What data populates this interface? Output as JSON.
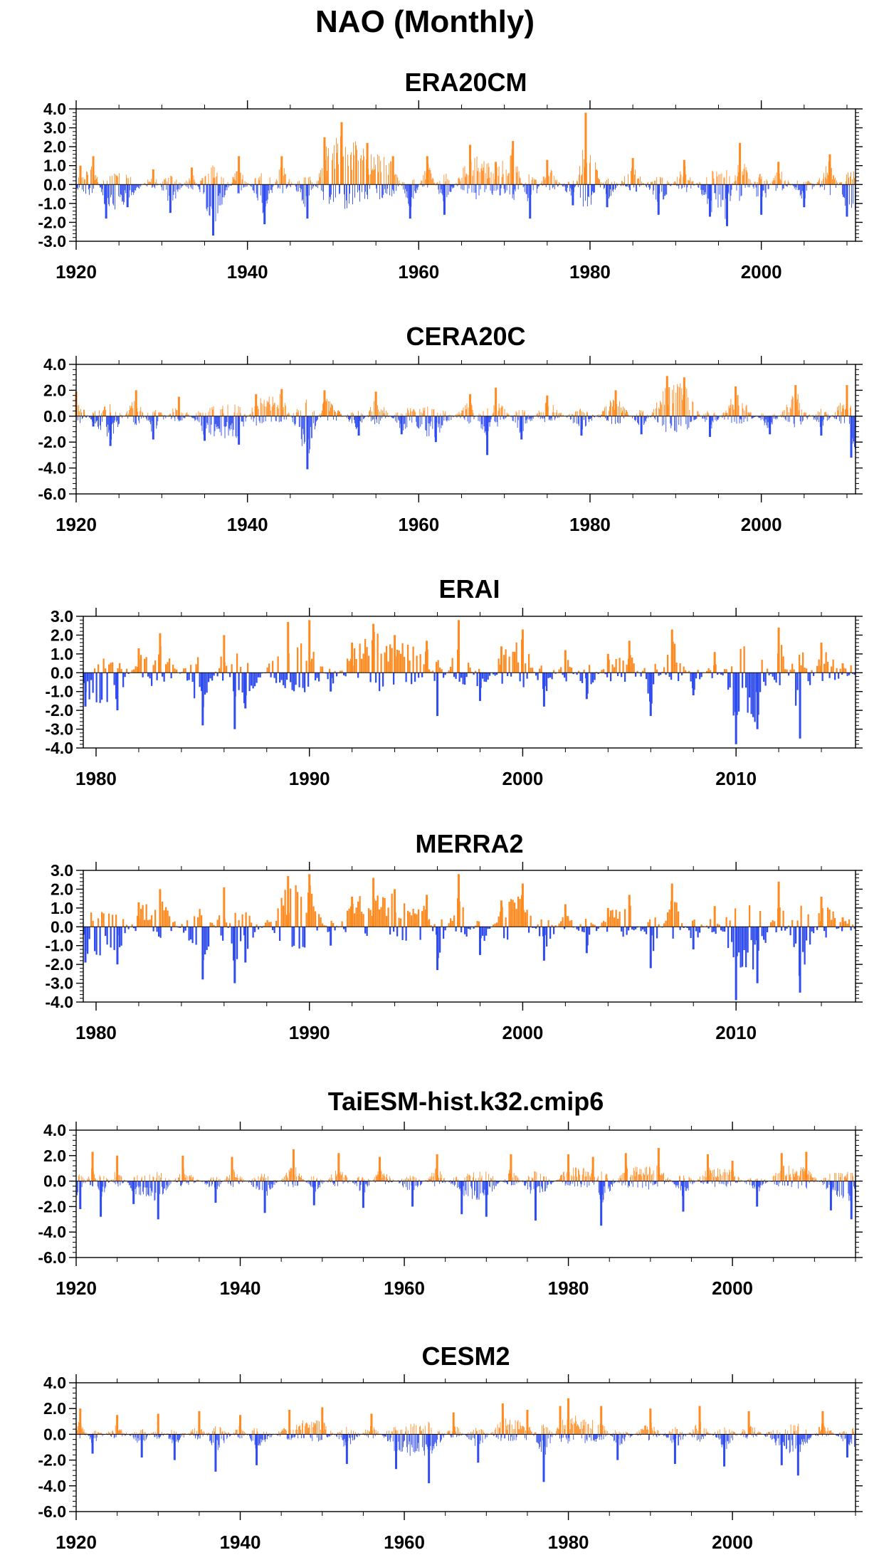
{
  "figure": {
    "title": "NAO (Monthly)"
  },
  "colors": {
    "positive": "#ff8a1f",
    "negative": "#2f4cf0",
    "axis": "#000000"
  },
  "chart_data": [
    {
      "type": "bar",
      "title": "ERA20CM",
      "x_range": [
        1920,
        2011
      ],
      "ylim": [
        -3.0,
        4.0
      ],
      "yticks": [
        -3.0,
        -2.0,
        -1.0,
        0.0,
        1.0,
        2.0,
        3.0,
        4.0
      ],
      "ytick_labels": [
        "-3.0",
        "-2.0",
        "-1.0",
        "0.0",
        "1.0",
        "2.0",
        "3.0",
        "4.0"
      ],
      "xticks": [
        1920,
        1940,
        1960,
        1980,
        2000
      ],
      "xtick_labels": [
        "1920",
        "1940",
        "1960",
        "1980",
        "2000"
      ],
      "series_x": [
        1920.5,
        1922.0,
        1923.5,
        1926.0,
        1929.0,
        1931.0,
        1933.5,
        1936.0,
        1939.0,
        1942.0,
        1944.0,
        1947.0,
        1949.0,
        1951.0,
        1954.0,
        1957.0,
        1959.0,
        1961.0,
        1963.0,
        1966.0,
        1969.0,
        1971.0,
        1973.0,
        1975.0,
        1978.0,
        1979.5,
        1982.0,
        1985.0,
        1988.0,
        1991.0,
        1994.0,
        1996.0,
        1997.5,
        2000.0,
        2002.0,
        2005.0,
        2008.0,
        2010.0
      ],
      "series_y": [
        1.0,
        1.5,
        -1.8,
        -1.2,
        0.8,
        -1.5,
        0.9,
        -2.7,
        1.5,
        -2.1,
        1.5,
        -1.8,
        2.5,
        3.3,
        2.2,
        1.5,
        -1.8,
        1.5,
        -1.6,
        2.1,
        1.2,
        2.3,
        -1.8,
        1.3,
        -1.1,
        3.8,
        -1.2,
        1.4,
        -1.6,
        1.3,
        -1.7,
        -2.2,
        2.2,
        -1.6,
        1.2,
        -1.2,
        1.6,
        -1.7
      ]
    },
    {
      "type": "bar",
      "title": "CERA20C",
      "x_range": [
        1920,
        2011
      ],
      "ylim": [
        -6.0,
        4.0
      ],
      "yticks": [
        -6.0,
        -4.0,
        -2.0,
        0.0,
        2.0,
        4.0
      ],
      "ytick_labels": [
        "-6.0",
        "-4.0",
        "-2.0",
        "0.0",
        "2.0",
        "4.0"
      ],
      "xticks": [
        1920,
        1940,
        1960,
        1980,
        2000
      ],
      "xtick_labels": [
        "1920",
        "1940",
        "1960",
        "1980",
        "2000"
      ],
      "series_x": [
        1920.0,
        1922.0,
        1924.0,
        1927.0,
        1929.0,
        1932.0,
        1935.0,
        1939.0,
        1941.0,
        1944.0,
        1947.0,
        1949.0,
        1953.0,
        1955.0,
        1958.0,
        1962.0,
        1966.0,
        1968.0,
        1969.0,
        1972.0,
        1975.0,
        1979.0,
        1983.0,
        1986.0,
        1989.0,
        1991.0,
        1994.0,
        1997.0,
        2001.0,
        2004.0,
        2007.0,
        2010.0,
        2010.5
      ],
      "series_y": [
        1.9,
        -0.8,
        -2.3,
        2.0,
        -1.8,
        1.5,
        -1.9,
        -2.2,
        1.7,
        2.1,
        -4.1,
        2.0,
        -1.5,
        1.9,
        -1.4,
        -2.0,
        1.7,
        -3.0,
        2.2,
        -1.8,
        1.6,
        -1.5,
        2.0,
        -1.4,
        3.1,
        3.0,
        -1.6,
        2.3,
        -1.4,
        2.4,
        -1.5,
        2.4,
        -3.2
      ]
    },
    {
      "type": "bar",
      "title": "ERAI",
      "x_range": [
        1979.4,
        2015.6
      ],
      "ylim": [
        -4.0,
        3.0
      ],
      "yticks": [
        -4.0,
        -3.0,
        -2.0,
        -1.0,
        0.0,
        1.0,
        2.0,
        3.0
      ],
      "ytick_labels": [
        "-4.0",
        "-3.0",
        "-2.0",
        "-1.0",
        "0.0",
        "1.0",
        "2.0",
        "3.0"
      ],
      "xticks": [
        1980,
        1990,
        2000,
        2010
      ],
      "xtick_labels": [
        "1980",
        "1990",
        "2000",
        "2010"
      ],
      "series_x": [
        1979.5,
        1981.0,
        1982.0,
        1983.0,
        1985.0,
        1986.0,
        1986.5,
        1987.0,
        1989.0,
        1990.0,
        1991.0,
        1992.0,
        1993.0,
        1994.0,
        1995.5,
        1996.0,
        1997.0,
        1998.0,
        1999.0,
        2000.0,
        2001.0,
        2002.0,
        2003.0,
        2004.0,
        2005.0,
        2006.0,
        2007.0,
        2008.0,
        2009.0,
        2010.0,
        2011.0,
        2012.0,
        2013.0,
        2014.0,
        2015.0
      ],
      "series_y": [
        -1.8,
        -2.0,
        1.3,
        2.1,
        -2.8,
        2.0,
        -3.0,
        -1.9,
        2.7,
        2.8,
        -1.0,
        1.6,
        2.6,
        2.0,
        1.7,
        -2.3,
        2.8,
        -1.5,
        1.4,
        2.3,
        -1.8,
        1.2,
        -1.4,
        1.0,
        1.7,
        -2.3,
        2.3,
        -1.2,
        1.1,
        -3.8,
        -3.0,
        2.4,
        -3.5,
        1.6,
        0.5
      ]
    },
    {
      "type": "bar",
      "title": "MERRA2",
      "x_range": [
        1979.4,
        2015.6
      ],
      "ylim": [
        -4.0,
        3.0
      ],
      "yticks": [
        -4.0,
        -3.0,
        -2.0,
        -1.0,
        0.0,
        1.0,
        2.0,
        3.0
      ],
      "ytick_labels": [
        "-4.0",
        "-3.0",
        "-2.0",
        "-1.0",
        "0.0",
        "1.0",
        "2.0",
        "3.0"
      ],
      "xticks": [
        1980,
        1990,
        2000,
        2010
      ],
      "xtick_labels": [
        "1980",
        "1990",
        "2000",
        "2010"
      ],
      "series_x": [
        1979.5,
        1981.0,
        1982.0,
        1983.0,
        1985.0,
        1986.0,
        1986.5,
        1987.0,
        1989.0,
        1990.0,
        1991.0,
        1992.0,
        1993.0,
        1994.0,
        1995.5,
        1996.0,
        1997.0,
        1998.0,
        1999.0,
        2000.0,
        2001.0,
        2002.0,
        2003.0,
        2004.0,
        2005.0,
        2006.0,
        2007.0,
        2008.0,
        2009.0,
        2010.0,
        2011.0,
        2012.0,
        2013.0,
        2014.0,
        2015.0
      ],
      "series_y": [
        -1.9,
        -2.0,
        1.3,
        2.0,
        -2.8,
        2.1,
        -3.0,
        -1.9,
        2.7,
        2.8,
        -1.0,
        1.6,
        2.6,
        2.0,
        1.7,
        -2.3,
        2.8,
        -1.5,
        1.4,
        2.3,
        -1.8,
        1.2,
        -1.4,
        1.0,
        1.7,
        -2.2,
        2.3,
        -1.2,
        1.1,
        -3.9,
        -3.0,
        2.4,
        -3.5,
        1.6,
        0.5
      ]
    },
    {
      "type": "bar",
      "title": "TaiESM-hist.k32.cmip6",
      "x_range": [
        1920,
        2015
      ],
      "ylim": [
        -6.0,
        4.0
      ],
      "yticks": [
        -6.0,
        -4.0,
        -2.0,
        0.0,
        2.0,
        4.0
      ],
      "ytick_labels": [
        "-6.0",
        "-4.0",
        "-2.0",
        "0.0",
        "2.0",
        "4.0"
      ],
      "xticks": [
        1920,
        1940,
        1960,
        1980,
        2000
      ],
      "xtick_labels": [
        "1920",
        "1940",
        "1960",
        "1980",
        "2000"
      ],
      "series_x": [
        1920.5,
        1922.0,
        1923.0,
        1925.0,
        1927.0,
        1930.0,
        1933.0,
        1937.0,
        1939.0,
        1943.0,
        1946.5,
        1949.0,
        1952.0,
        1955.0,
        1957.0,
        1961.0,
        1964.0,
        1967.0,
        1970.0,
        1973.0,
        1976.0,
        1980.0,
        1983.0,
        1984.0,
        1987.0,
        1991.0,
        1994.0,
        1997.0,
        2000.0,
        2003.0,
        2006.0,
        2009.0,
        2012.0,
        2014.5
      ],
      "series_y": [
        -2.2,
        2.3,
        -2.8,
        2.0,
        -1.8,
        -3.0,
        2.0,
        -1.7,
        1.9,
        -2.5,
        2.5,
        -1.9,
        2.2,
        -2.1,
        1.9,
        -2.0,
        2.1,
        -2.6,
        -2.8,
        2.1,
        -3.1,
        2.1,
        1.9,
        -3.5,
        2.2,
        2.6,
        -2.4,
        2.1,
        1.6,
        -2.0,
        2.2,
        2.3,
        -2.3,
        -3.0
      ]
    },
    {
      "type": "bar",
      "title": "CESM2",
      "x_range": [
        1920,
        2015
      ],
      "ylim": [
        -6.0,
        4.0
      ],
      "yticks": [
        -6.0,
        -4.0,
        -2.0,
        0.0,
        2.0,
        4.0
      ],
      "ytick_labels": [
        "-6.0",
        "-4.0",
        "-2.0",
        "0.0",
        "2.0",
        "4.0"
      ],
      "xticks": [
        1920,
        1940,
        1960,
        1980,
        2000
      ],
      "xtick_labels": [
        "1920",
        "1940",
        "1960",
        "1980",
        "2000"
      ],
      "series_x": [
        1920.5,
        1922.0,
        1925.0,
        1928.0,
        1930.0,
        1932.0,
        1935.0,
        1937.0,
        1940.0,
        1942.0,
        1946.0,
        1950.0,
        1953.0,
        1956.0,
        1959.0,
        1963.0,
        1966.0,
        1969.0,
        1972.0,
        1975.0,
        1977.0,
        1979.0,
        1980.0,
        1984.0,
        1986.0,
        1990.0,
        1993.0,
        1996.0,
        1999.0,
        2002.0,
        2006.0,
        2008.0,
        2011.0,
        2014.0
      ],
      "series_y": [
        2.0,
        -1.5,
        1.5,
        -1.8,
        1.6,
        -2.0,
        1.8,
        -2.9,
        1.5,
        -2.4,
        1.9,
        2.1,
        -2.3,
        1.6,
        -2.7,
        -3.8,
        1.7,
        -2.2,
        2.4,
        1.9,
        -3.7,
        2.2,
        2.8,
        2.2,
        -2.0,
        2.0,
        -2.3,
        2.2,
        -2.5,
        1.8,
        -2.4,
        -3.2,
        1.8,
        -1.8
      ]
    }
  ]
}
